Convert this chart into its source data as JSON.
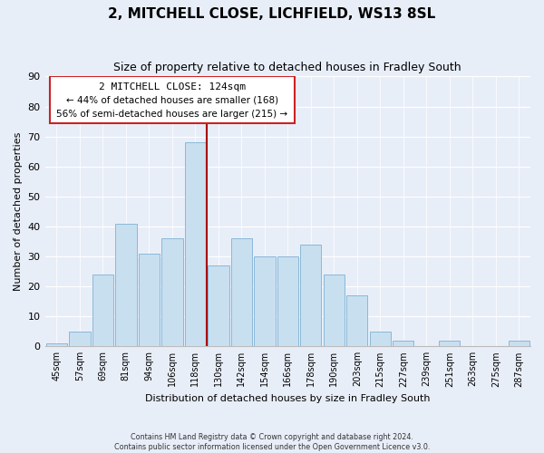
{
  "title": "2, MITCHELL CLOSE, LICHFIELD, WS13 8SL",
  "subtitle": "Size of property relative to detached houses in Fradley South",
  "xlabel": "Distribution of detached houses by size in Fradley South",
  "ylabel": "Number of detached properties",
  "footnote1": "Contains HM Land Registry data © Crown copyright and database right 2024.",
  "footnote2": "Contains public sector information licensed under the Open Government Licence v3.0.",
  "bin_labels": [
    "45sqm",
    "57sqm",
    "69sqm",
    "81sqm",
    "94sqm",
    "106sqm",
    "118sqm",
    "130sqm",
    "142sqm",
    "154sqm",
    "166sqm",
    "178sqm",
    "190sqm",
    "203sqm",
    "215sqm",
    "227sqm",
    "239sqm",
    "251sqm",
    "263sqm",
    "275sqm",
    "287sqm"
  ],
  "bar_values": [
    1,
    5,
    24,
    41,
    31,
    36,
    68,
    27,
    36,
    30,
    30,
    34,
    24,
    17,
    5,
    2,
    0,
    2,
    0,
    0,
    2
  ],
  "bar_color": "#c8dff0",
  "bar_edge_color": "#8ab8d8",
  "vline_color": "#aa0000",
  "annotation_title": "2 MITCHELL CLOSE: 124sqm",
  "annotation_line1": "← 44% of detached houses are smaller (168)",
  "annotation_line2": "56% of semi-detached houses are larger (215) →",
  "annotation_box_facecolor": "#ffffff",
  "annotation_box_edgecolor": "#cc2222",
  "ylim": [
    0,
    90
  ],
  "yticks": [
    0,
    10,
    20,
    30,
    40,
    50,
    60,
    70,
    80,
    90
  ],
  "background_color": "#e8eef8",
  "grid_color": "#ffffff",
  "title_fontsize": 11,
  "subtitle_fontsize": 9
}
